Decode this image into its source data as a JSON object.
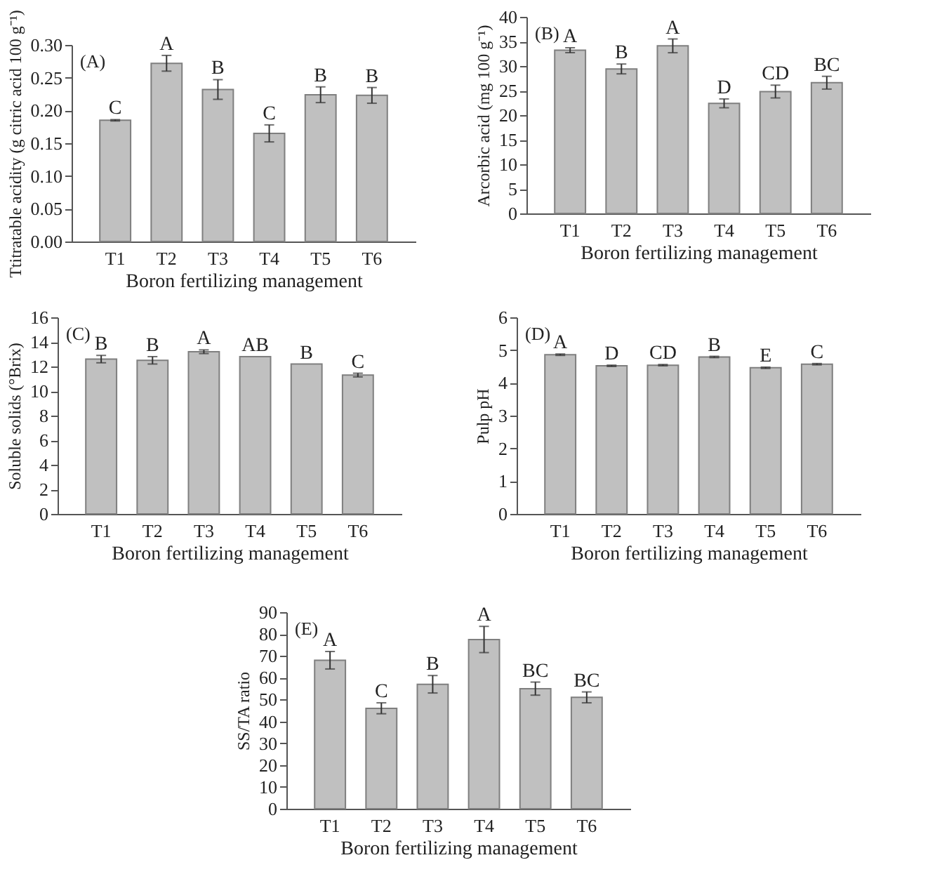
{
  "chart_data": [
    {
      "type": "bar",
      "categories": [
        "T1",
        "T2",
        "T3",
        "T4",
        "T5",
        "T6"
      ],
      "xlabel": "Boron fertilizing management",
      "ylabel": "Ttitratable acidity (g citric acid 100 g⁻¹)",
      "color": "#c0c0c0",
      "values": [
        0.185,
        0.272,
        0.232,
        0.165,
        0.224,
        0.223
      ],
      "errors": [
        0.001,
        0.012,
        0.015,
        0.013,
        0.012,
        0.012
      ],
      "ylim": [
        0,
        0.3
      ],
      "yticks": [
        {
          "value": 0,
          "label": "0.00"
        },
        {
          "value": 0.05,
          "label": "0.05"
        },
        {
          "value": 0.1,
          "label": "0.10"
        },
        {
          "value": 0.15,
          "label": "0.15"
        },
        {
          "value": 0.2,
          "label": "0.20"
        },
        {
          "value": 0.25,
          "label": "0.25"
        },
        {
          "value": 0.3,
          "label": "0.30"
        }
      ],
      "grid": false,
      "annotations": [
        "(A)",
        {
          "text": "C",
          "x": "T1",
          "y": 0.186
        },
        {
          "text": "A",
          "x": "T2",
          "y": 0.284
        },
        {
          "text": "B",
          "x": "T3",
          "y": 0.247
        },
        {
          "text": "C",
          "x": "T4",
          "y": 0.178
        },
        {
          "text": "B",
          "x": "T5",
          "y": 0.236
        },
        {
          "text": "B",
          "x": "T6",
          "y": 0.235
        }
      ]
    },
    {
      "type": "bar",
      "categories": [
        "T1",
        "T2",
        "T3",
        "T4",
        "T5",
        "T6"
      ],
      "xlabel": "Boron fertilizing management",
      "ylabel": "Arcorbic acid (mg 100 g⁻¹)",
      "color": "#c0c0c0",
      "values": [
        33.2,
        29.4,
        34.1,
        22.4,
        24.8,
        26.6
      ],
      "errors": [
        0.5,
        1,
        1.4,
        0.9,
        1.3,
        1.3
      ],
      "ylim": [
        0,
        40
      ],
      "yticks": [
        0,
        5,
        10,
        15,
        20,
        25,
        30,
        35,
        40
      ],
      "grid": false,
      "annotations": [
        "(B)",
        {
          "text": "A",
          "x": "T1",
          "y": 33.7
        },
        {
          "text": "B",
          "x": "T2",
          "y": 30.4
        },
        {
          "text": "A",
          "x": "T3",
          "y": 35.5
        },
        {
          "text": "D",
          "x": "T4",
          "y": 23.3
        },
        {
          "text": "CD",
          "x": "T5",
          "y": 26.1
        },
        {
          "text": "BC",
          "x": "T6",
          "y": 27.9
        }
      ]
    },
    {
      "type": "bar",
      "categories": [
        "T1",
        "T2",
        "T3",
        "T4",
        "T5",
        "T6"
      ],
      "xlabel": "Boron fertilizing management",
      "ylabel": "Soluble solids (°Brix)",
      "color": "#c0c0c0",
      "values": [
        12.6,
        12.5,
        13.2,
        12.8,
        12.2,
        11.3
      ],
      "errors": [
        0.3,
        0.3,
        0.15,
        null,
        null,
        0.15
      ],
      "ylim": [
        0,
        16
      ],
      "yticks": [
        0,
        2,
        4,
        6,
        8,
        10,
        12,
        14,
        16
      ],
      "grid": false,
      "annotations": [
        "(C)",
        {
          "text": "B",
          "x": "T1",
          "y": 12.9
        },
        {
          "text": "B",
          "x": "T2",
          "y": 12.8
        },
        {
          "text": "A",
          "x": "T3",
          "y": 13.35
        },
        {
          "text": "AB",
          "x": "T4",
          "y": 12.8
        },
        {
          "text": "B",
          "x": "T5",
          "y": 12.2
        },
        {
          "text": "C",
          "x": "T6",
          "y": 11.45
        }
      ]
    },
    {
      "type": "bar",
      "categories": [
        "T1",
        "T2",
        "T3",
        "T4",
        "T5",
        "T6"
      ],
      "xlabel": "Boron fertilizing management",
      "ylabel": "Pulp pH",
      "color": "#c0c0c0",
      "values": [
        4.86,
        4.52,
        4.54,
        4.79,
        4.46,
        4.57
      ],
      "errors": [
        0.02,
        0.02,
        0.02,
        0.02,
        0.02,
        0.02
      ],
      "ylim": [
        0,
        6
      ],
      "yticks": [
        0,
        1,
        2,
        3,
        4,
        5,
        6
      ],
      "grid": false,
      "annotations": [
        "(D)",
        {
          "text": "A",
          "x": "T1",
          "y": 4.88
        },
        {
          "text": "D",
          "x": "T2",
          "y": 4.54
        },
        {
          "text": "CD",
          "x": "T3",
          "y": 4.56
        },
        {
          "text": "B",
          "x": "T4",
          "y": 4.81
        },
        {
          "text": "E",
          "x": "T5",
          "y": 4.48
        },
        {
          "text": "C",
          "x": "T6",
          "y": 4.59
        }
      ]
    },
    {
      "type": "bar",
      "categories": [
        "T1",
        "T2",
        "T3",
        "T4",
        "T5",
        "T6"
      ],
      "xlabel": "Boron fertilizing management",
      "ylabel": "SS/TA ratio",
      "color": "#c0c0c0",
      "values": [
        68,
        46,
        57,
        77.5,
        55,
        51
      ],
      "errors": [
        4,
        2.5,
        4,
        6,
        3,
        2.5
      ],
      "ylim": [
        0,
        90
      ],
      "yticks": [
        0,
        10,
        20,
        30,
        40,
        50,
        60,
        70,
        80,
        90
      ],
      "grid": false,
      "annotations": [
        "(E)",
        {
          "text": "A",
          "x": "T1",
          "y": 72
        },
        {
          "text": "C",
          "x": "T2",
          "y": 48.5
        },
        {
          "text": "B",
          "x": "T3",
          "y": 61
        },
        {
          "text": "A",
          "x": "T4",
          "y": 83.5
        },
        {
          "text": "BC",
          "x": "T5",
          "y": 58
        },
        {
          "text": "BC",
          "x": "T6",
          "y": 53.5
        }
      ]
    }
  ]
}
